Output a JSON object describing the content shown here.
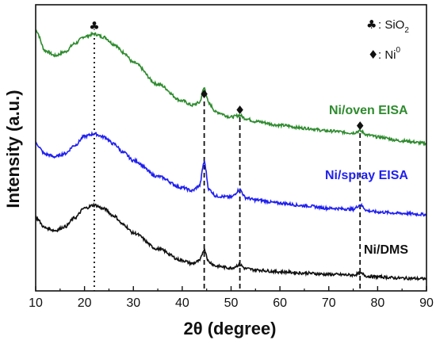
{
  "chart_data": {
    "type": "line",
    "xlabel": "2θ (degree)",
    "ylabel": "Intensity (a.u.)",
    "xlim": [
      10,
      90
    ],
    "x_ticks": [
      "10",
      "20",
      "30",
      "40",
      "50",
      "60",
      "70",
      "80",
      "90"
    ],
    "y_ticks_shown": false,
    "legend": {
      "placement": "top-right",
      "entries": [
        {
          "symbol": "♣",
          "symbol_name": "club-icon",
          "text": ": SiO",
          "subscript": "2"
        },
        {
          "symbol": "♦",
          "symbol_name": "diamond-icon",
          "text": ": Ni",
          "superscript": "0"
        }
      ]
    },
    "reference_lines": [
      {
        "x": 22,
        "style": "dotted",
        "marker": "♣",
        "marker_name": "club-icon"
      },
      {
        "x": 44.5,
        "style": "dashed",
        "marker": "♦",
        "marker_name": "diamond-icon"
      },
      {
        "x": 51.8,
        "style": "dashed",
        "marker": "♦",
        "marker_name": "diamond-icon"
      },
      {
        "x": 76.4,
        "style": "dashed",
        "marker": "♦",
        "marker_name": "diamond-icon"
      }
    ],
    "series": [
      {
        "name": "Ni/oven EISA",
        "color": "#2e8b2e",
        "x": [
          10,
          12,
          14,
          16,
          18,
          20,
          22,
          24,
          26,
          28,
          30,
          35,
          40,
          42,
          43.5,
          44.5,
          45.5,
          47,
          50,
          51.8,
          53,
          55,
          60,
          65,
          70,
          75,
          76.4,
          78,
          80,
          85,
          90
        ],
        "y": [
          8.2,
          7.55,
          7.4,
          7.52,
          7.78,
          8.0,
          8.08,
          7.98,
          7.76,
          7.5,
          7.18,
          6.5,
          5.98,
          5.84,
          5.92,
          6.38,
          5.88,
          5.62,
          5.47,
          5.52,
          5.42,
          5.33,
          5.21,
          5.12,
          5.03,
          4.97,
          5.03,
          4.9,
          4.84,
          4.72,
          4.64
        ]
      },
      {
        "name": "Ni/spray EISA",
        "color": "#1f1ff0",
        "x": [
          10,
          12,
          14,
          16,
          18,
          20,
          22,
          24,
          26,
          28,
          30,
          35,
          40,
          42,
          43.5,
          44.5,
          45.5,
          47,
          50,
          51.8,
          53,
          55,
          60,
          65,
          70,
          75,
          76.4,
          78,
          80,
          85,
          90
        ],
        "y": [
          4.63,
          4.3,
          4.22,
          4.32,
          4.58,
          4.86,
          4.94,
          4.84,
          4.62,
          4.35,
          4.1,
          3.6,
          3.25,
          3.15,
          3.3,
          4.05,
          3.18,
          2.98,
          2.95,
          3.18,
          2.93,
          2.86,
          2.76,
          2.68,
          2.6,
          2.57,
          2.7,
          2.52,
          2.48,
          2.44,
          2.4
        ]
      },
      {
        "name": "Ni/DMS",
        "color": "#111111",
        "x": [
          10,
          12,
          14,
          16,
          18,
          20,
          22,
          24,
          26,
          28,
          30,
          35,
          40,
          42,
          43.5,
          44.5,
          45.5,
          47,
          50,
          51.8,
          53,
          55,
          60,
          65,
          70,
          75,
          76.4,
          78,
          80,
          85,
          90
        ],
        "y": [
          2.3,
          1.98,
          1.9,
          2.02,
          2.3,
          2.6,
          2.7,
          2.58,
          2.36,
          2.08,
          1.82,
          1.32,
          0.96,
          0.86,
          0.94,
          1.3,
          0.9,
          0.78,
          0.72,
          0.82,
          0.7,
          0.66,
          0.6,
          0.56,
          0.52,
          0.5,
          0.55,
          0.46,
          0.44,
          0.4,
          0.38
        ]
      }
    ],
    "series_labels_shown": [
      "Ni/oven EISA",
      "Ni/spray EISA",
      "Ni/DMS"
    ]
  }
}
